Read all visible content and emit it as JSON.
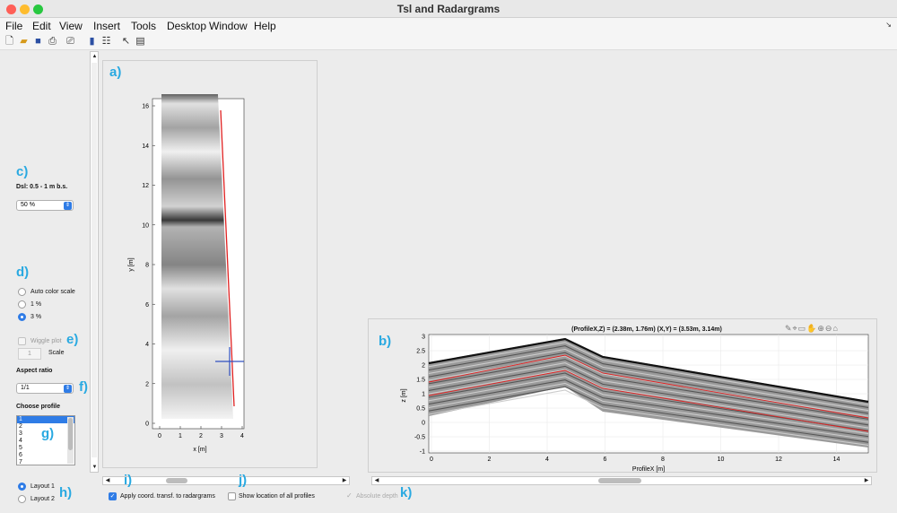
{
  "window": {
    "title": "Tsl and Radargrams"
  },
  "menu": [
    "File",
    "Edit",
    "View",
    "Insert",
    "Tools",
    "Desktop",
    "Window",
    "Help"
  ],
  "toolbar_icons": [
    "new-file-icon",
    "open-folder-icon",
    "save-icon",
    "print-icon",
    "print-preview-icon",
    "colorbar-icon",
    "legend-icon",
    "pointer-icon",
    "property-editor-icon"
  ],
  "labels": {
    "a": "a)",
    "b": "b)",
    "c": "c)",
    "d": "d)",
    "e": "e)",
    "f": "f)",
    "g": "g)",
    "h": "h)",
    "i": "i)",
    "j": "j)",
    "k": "k)"
  },
  "controls": {
    "depth_label": "Dsl: 0.5 - 1 m b.s.",
    "transparency": "50 %",
    "color_scale": [
      {
        "label": "Auto color scale",
        "selected": false
      },
      {
        "label": "1 %",
        "selected": false
      },
      {
        "label": "3 %",
        "selected": true
      }
    ],
    "wiggle_label": "Wiggle plot",
    "scale_value": "1",
    "scale_label": "Scale",
    "aspect_title": "Aspect ratio",
    "aspect_value": "1/1",
    "profile_title": "Choose profile",
    "profiles": [
      "1",
      "2",
      "3",
      "4",
      "5",
      "6",
      "7"
    ],
    "selected_profile": "1",
    "layouts": [
      {
        "label": "Layout 1",
        "selected": true
      },
      {
        "label": "Layout 2",
        "selected": false
      }
    ],
    "apply_coord": "Apply coord. transf. to radargrams",
    "show_location": "Show location of all profiles",
    "absolute_depth": "Absolute depth"
  },
  "map_plot": {
    "xlabel": "x [m]",
    "ylabel": "y [m]",
    "xticks": [
      "0",
      "1",
      "2",
      "3",
      "4"
    ],
    "yticks": [
      "0",
      "2",
      "4",
      "6",
      "8",
      "10",
      "12",
      "14",
      "16"
    ]
  },
  "radargram": {
    "title": "(ProfileX,Z) = (2.38m, 1.76m)   (X,Y) = (3.53m, 3.14m)",
    "xlabel": "ProfileX [m]",
    "ylabel": "z [m]",
    "xticks": [
      "0",
      "2",
      "4",
      "6",
      "8",
      "10",
      "12",
      "14"
    ],
    "yticks": [
      "3",
      "2.5",
      "2",
      "1.5",
      "1",
      "0.5",
      "0",
      "-0.5",
      "-1"
    ],
    "axes_tools": [
      "brush-icon",
      "data-cursor-icon",
      "datatip-icon",
      "pan-icon",
      "zoom-in-icon",
      "zoom-out-icon",
      "home-icon"
    ]
  },
  "colors": {
    "accent": "#29a9e1",
    "profile_line": "#e02020",
    "marker": "#3050c0"
  }
}
